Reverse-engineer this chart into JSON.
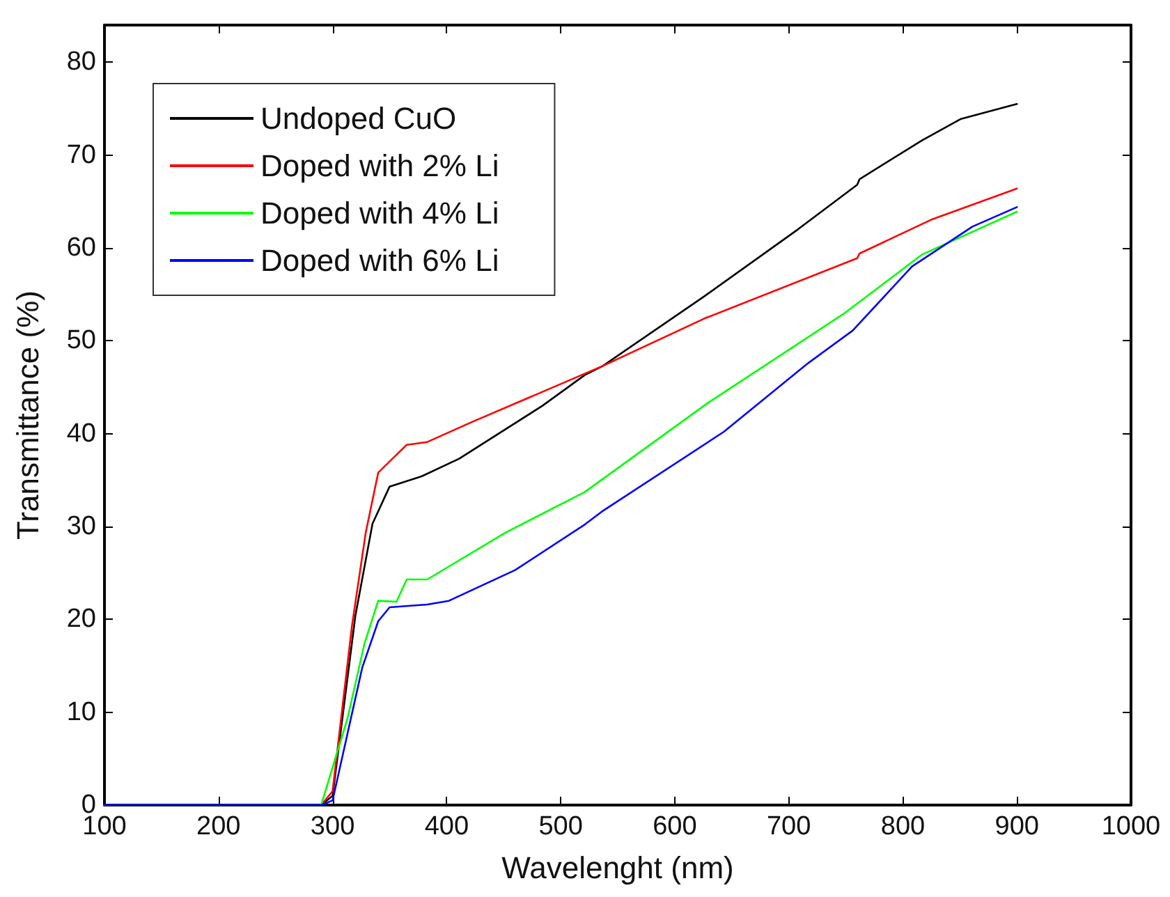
{
  "chart_data": {
    "type": "line",
    "xlabel": "Wavelenght (nm)",
    "ylabel": "Transmittance (%)",
    "xlim": [
      100,
      1000
    ],
    "ylim": [
      0,
      84
    ],
    "xticks": [
      100,
      200,
      300,
      400,
      500,
      600,
      700,
      800,
      900,
      1000
    ],
    "yticks": [
      0,
      10,
      20,
      30,
      40,
      50,
      60,
      70,
      80
    ],
    "legend": "top left",
    "grid": false,
    "marker": "none",
    "line_style": "solid",
    "series": [
      {
        "name": "Undoped CuO",
        "color": "#000000",
        "x": [
          100,
          290,
          300,
          320,
          335,
          350,
          378,
          411,
          484,
          521,
          537,
          626,
          708,
          760,
          762,
          817,
          851,
          900
        ],
        "values": [
          0,
          0,
          1,
          20.4,
          30.3,
          34.3,
          35.4,
          37.3,
          43,
          46.3,
          47.3,
          54.8,
          62,
          66.8,
          67.4,
          71.6,
          73.9,
          75.5
        ]
      },
      {
        "name": "Doped with 2% Li",
        "color": "#ff0000",
        "x": [
          100,
          290,
          300,
          317,
          329,
          340,
          365,
          383,
          423,
          484,
          537,
          626,
          760,
          762,
          826,
          900
        ],
        "values": [
          0,
          0,
          1.5,
          19.3,
          29.3,
          35.8,
          38.8,
          39.1,
          41.3,
          44.5,
          47.3,
          52.4,
          58.9,
          59.4,
          63.1,
          66.4
        ]
      },
      {
        "name": "Doped with 4% Li",
        "color": "#00ff00",
        "x": [
          100,
          290,
          313,
          328,
          340,
          356,
          365,
          383,
          451,
          521,
          629,
          748,
          817,
          900
        ],
        "values": [
          0,
          0,
          9.3,
          17.4,
          22,
          21.9,
          24.3,
          24.3,
          29.3,
          33.7,
          43.3,
          52.9,
          59.3,
          63.9
        ]
      },
      {
        "name": "Doped with 6% Li",
        "color": "#0000ff",
        "x": [
          100,
          290,
          300,
          326,
          340,
          350,
          383,
          402,
          460,
          521,
          536,
          643,
          717,
          756,
          808,
          861,
          900
        ],
        "values": [
          0,
          0,
          0.5,
          14.8,
          19.8,
          21.3,
          21.6,
          22,
          25.3,
          30.2,
          31.6,
          40.2,
          47.6,
          51.1,
          58,
          62.3,
          64.4
        ]
      }
    ]
  }
}
